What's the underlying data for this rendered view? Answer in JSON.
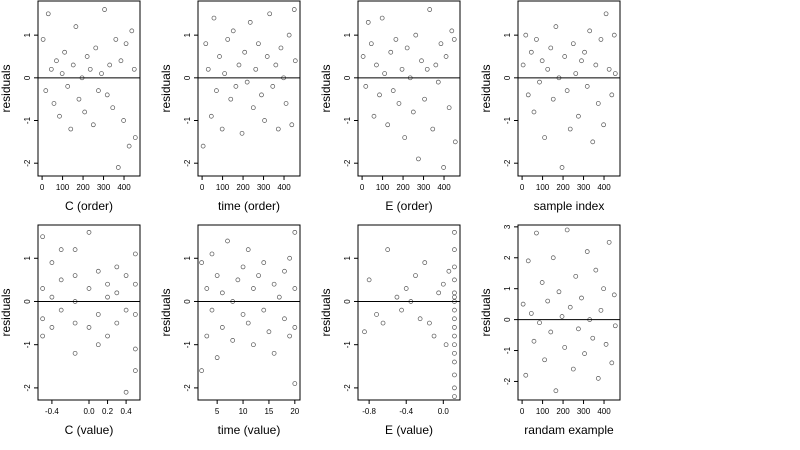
{
  "chart_data": [
    {
      "type": "scatter",
      "xlabel": "C (order)",
      "ylabel": "residuals",
      "color": "#555555",
      "hline": 0,
      "xlim": [
        -20,
        478
      ],
      "ylim": [
        -2.3,
        1.8
      ],
      "xticks": [
        0,
        100,
        200,
        300,
        400
      ],
      "yticks": [
        -2,
        -1,
        0,
        1
      ],
      "x": [
        5,
        18,
        30,
        45,
        58,
        70,
        85,
        98,
        110,
        125,
        140,
        152,
        165,
        180,
        195,
        208,
        220,
        235,
        250,
        262,
        275,
        290,
        305,
        318,
        330,
        345,
        360,
        372,
        385,
        398,
        410,
        425,
        438,
        450,
        455
      ],
      "y": [
        0.9,
        -0.3,
        1.5,
        0.2,
        -0.6,
        0.4,
        -0.9,
        0.1,
        0.6,
        -0.2,
        -1.2,
        0.3,
        1.2,
        -0.5,
        0.0,
        -0.8,
        0.5,
        0.2,
        -1.1,
        0.7,
        -0.3,
        0.1,
        1.6,
        -0.4,
        0.3,
        -0.7,
        0.9,
        -2.1,
        0.4,
        -1.0,
        0.8,
        -1.6,
        1.1,
        0.2,
        -1.4
      ]
    },
    {
      "type": "scatter",
      "xlabel": "time (order)",
      "ylabel": "residuals",
      "color": "#555555",
      "hline": 0,
      "xlim": [
        -20,
        478
      ],
      "ylim": [
        -2.3,
        1.8
      ],
      "xticks": [
        0,
        100,
        200,
        300,
        400
      ],
      "yticks": [
        -2,
        -1,
        0,
        1
      ],
      "x": [
        5,
        18,
        30,
        45,
        58,
        70,
        85,
        98,
        110,
        125,
        140,
        152,
        165,
        180,
        195,
        208,
        220,
        235,
        250,
        262,
        275,
        290,
        305,
        318,
        330,
        345,
        360,
        372,
        385,
        398,
        410,
        425,
        438,
        450,
        455
      ],
      "y": [
        -1.6,
        0.8,
        0.2,
        -0.9,
        1.4,
        -0.3,
        0.5,
        -1.2,
        0.1,
        0.9,
        -0.5,
        1.1,
        -0.2,
        0.3,
        -1.3,
        0.6,
        -0.1,
        1.3,
        -0.7,
        0.2,
        0.8,
        -0.4,
        -1.0,
        0.5,
        1.5,
        -0.2,
        0.3,
        -1.2,
        0.7,
        0.0,
        -0.6,
        1.0,
        -1.1,
        1.6,
        0.4
      ]
    },
    {
      "type": "scatter",
      "xlabel": "E (order)",
      "ylabel": "residuals",
      "color": "#555555",
      "hline": 0,
      "xlim": [
        -20,
        478
      ],
      "ylim": [
        -2.3,
        1.8
      ],
      "xticks": [
        0,
        100,
        200,
        300,
        400
      ],
      "yticks": [
        -2,
        -1,
        0,
        1
      ],
      "x": [
        5,
        18,
        30,
        45,
        58,
        70,
        85,
        98,
        110,
        125,
        140,
        152,
        165,
        180,
        195,
        208,
        220,
        235,
        250,
        262,
        275,
        290,
        305,
        318,
        330,
        345,
        360,
        372,
        385,
        398,
        410,
        425,
        438,
        450,
        455
      ],
      "y": [
        0.5,
        -0.2,
        1.3,
        0.8,
        -0.9,
        0.3,
        -0.4,
        1.4,
        0.1,
        -1.1,
        0.6,
        -0.3,
        0.9,
        -0.6,
        0.2,
        -1.4,
        0.7,
        0.0,
        -0.8,
        1.0,
        -1.9,
        0.4,
        -0.5,
        0.2,
        1.6,
        -1.2,
        0.3,
        -0.1,
        0.8,
        -2.1,
        0.5,
        -0.7,
        1.1,
        0.9,
        -1.5
      ]
    },
    {
      "type": "scatter",
      "xlabel": "sample index",
      "ylabel": "residuals",
      "color": "#555555",
      "hline": 0,
      "xlim": [
        -20,
        478
      ],
      "ylim": [
        -2.3,
        1.8
      ],
      "xticks": [
        0,
        100,
        200,
        300,
        400
      ],
      "yticks": [
        -2,
        -1,
        0,
        1
      ],
      "x": [
        5,
        18,
        30,
        45,
        58,
        70,
        85,
        98,
        110,
        125,
        140,
        152,
        165,
        180,
        195,
        208,
        220,
        235,
        250,
        262,
        275,
        290,
        305,
        318,
        330,
        345,
        360,
        372,
        385,
        398,
        410,
        425,
        438,
        450,
        455
      ],
      "y": [
        0.3,
        1.0,
        -0.4,
        0.6,
        -0.8,
        0.9,
        -0.1,
        0.4,
        -1.4,
        0.2,
        0.7,
        -0.5,
        1.2,
        0.0,
        -2.1,
        0.5,
        -0.3,
        -1.2,
        0.8,
        0.1,
        -0.9,
        0.4,
        0.6,
        -0.2,
        1.1,
        -1.5,
        0.3,
        -0.6,
        0.9,
        -1.1,
        1.5,
        0.2,
        -0.4,
        1.0,
        0.1
      ]
    },
    {
      "type": "scatter",
      "xlabel": "C (value)",
      "ylabel": "residuals",
      "color": "#555555",
      "hline": 0,
      "xlim": [
        -0.55,
        0.55
      ],
      "ylim": [
        -2.28,
        1.77
      ],
      "xticks": [
        -0.4,
        {
          "value": 0,
          "label": "0.0"
        },
        0.2,
        0.4
      ],
      "yticks": [
        -2,
        -1,
        0,
        1
      ],
      "x": [
        -0.5,
        -0.5,
        -0.5,
        -0.5,
        -0.4,
        -0.4,
        -0.4,
        -0.3,
        -0.3,
        -0.3,
        -0.15,
        -0.15,
        -0.15,
        -0.15,
        -0.15,
        0.0,
        0.0,
        0.0,
        0.1,
        0.1,
        0.1,
        0.2,
        0.2,
        0.2,
        0.3,
        0.3,
        0.3,
        0.4,
        0.4,
        0.4,
        0.5,
        0.5,
        0.5,
        0.5,
        0.5
      ],
      "y": [
        1.5,
        0.3,
        -0.4,
        -0.8,
        0.9,
        0.1,
        -0.6,
        1.2,
        -0.2,
        0.5,
        1.2,
        0.6,
        0.0,
        -0.5,
        -1.2,
        0.3,
        -0.6,
        1.6,
        0.7,
        -0.3,
        -1.0,
        0.4,
        -0.8,
        0.1,
        0.2,
        -0.5,
        0.8,
        -2.1,
        0.6,
        -0.2,
        1.1,
        0.4,
        -0.3,
        -1.1,
        -1.6
      ]
    },
    {
      "type": "scatter",
      "xlabel": "time (value)",
      "ylabel": "residuals",
      "color": "#555555",
      "hline": 0,
      "xlim": [
        1.3,
        21
      ],
      "ylim": [
        -2.28,
        1.77
      ],
      "xticks": [
        5,
        10,
        15,
        20
      ],
      "yticks": [
        -2,
        -1,
        0,
        1
      ],
      "x": [
        2,
        2,
        3,
        3,
        4,
        4,
        5,
        5,
        6,
        6,
        7,
        8,
        8,
        9,
        10,
        10,
        11,
        11,
        12,
        12,
        13,
        14,
        14,
        15,
        16,
        16,
        17,
        18,
        18,
        19,
        19,
        20,
        20,
        20,
        20
      ],
      "y": [
        0.9,
        -1.6,
        0.3,
        -0.8,
        1.1,
        -0.2,
        0.6,
        -1.3,
        0.2,
        -0.6,
        1.4,
        0.0,
        -0.9,
        0.5,
        -0.3,
        0.8,
        1.2,
        -0.5,
        0.3,
        -1.0,
        0.6,
        -0.2,
        0.9,
        -0.7,
        0.4,
        -1.2,
        0.1,
        0.7,
        -0.4,
        1.0,
        -0.8,
        1.6,
        0.3,
        -0.6,
        -1.9
      ]
    },
    {
      "type": "scatter",
      "xlabel": "E (value)",
      "ylabel": "residuals",
      "color": "#555555",
      "hline": 0,
      "xlim": [
        -0.92,
        0.18
      ],
      "ylim": [
        -2.28,
        1.77
      ],
      "xticks": [
        -0.8,
        -0.4,
        {
          "value": 0,
          "label": "0.0"
        }
      ],
      "yticks": [
        -2,
        -1,
        0,
        1
      ],
      "x": [
        -0.85,
        -0.8,
        -0.72,
        -0.65,
        -0.6,
        -0.5,
        -0.45,
        -0.4,
        -0.35,
        -0.3,
        -0.25,
        -0.2,
        -0.15,
        -0.1,
        -0.05,
        0.0,
        0.03,
        0.06,
        0.12,
        0.12,
        0.12,
        0.12,
        0.12,
        0.12,
        0.12,
        0.12,
        0.12,
        0.12,
        0.12,
        0.12,
        0.12,
        0.12,
        0.12,
        0.12,
        0.12
      ],
      "y": [
        -0.7,
        0.5,
        -0.3,
        -0.5,
        1.2,
        0.1,
        -0.2,
        0.3,
        0.0,
        0.6,
        -0.4,
        0.9,
        -0.5,
        -0.8,
        0.2,
        0.4,
        -1.0,
        0.7,
        1.6,
        1.2,
        0.8,
        0.5,
        0.2,
        0.0,
        -0.2,
        -0.4,
        -0.6,
        -0.8,
        -1.0,
        -1.2,
        -1.4,
        -1.7,
        -2.0,
        -2.2,
        0.1
      ]
    },
    {
      "type": "scatter",
      "xlabel": "randam example",
      "ylabel": "residuals",
      "color": "#555555",
      "hline": 0,
      "xlim": [
        -20,
        478
      ],
      "ylim": [
        -2.6,
        3.06
      ],
      "xticks": [
        0,
        100,
        200,
        300,
        400
      ],
      "yticks": [
        -2,
        -1,
        0,
        1,
        2,
        3
      ],
      "x": [
        5,
        18,
        30,
        45,
        58,
        70,
        85,
        98,
        110,
        125,
        140,
        152,
        165,
        180,
        195,
        208,
        220,
        235,
        250,
        262,
        275,
        290,
        305,
        318,
        330,
        345,
        360,
        372,
        385,
        398,
        410,
        425,
        438,
        450,
        455
      ],
      "y": [
        0.5,
        -1.8,
        1.9,
        0.2,
        -0.7,
        2.8,
        -0.1,
        1.2,
        -1.3,
        0.6,
        -0.4,
        2.0,
        -2.3,
        0.9,
        0.1,
        -0.9,
        2.9,
        0.4,
        -1.6,
        1.4,
        -0.3,
        0.7,
        -1.1,
        2.2,
        0.0,
        -0.6,
        1.6,
        -1.9,
        0.3,
        1.0,
        -0.8,
        2.5,
        -1.4,
        0.8,
        -0.2
      ]
    }
  ]
}
